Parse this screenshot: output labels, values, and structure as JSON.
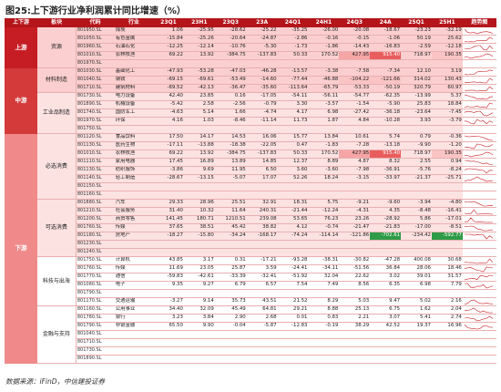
{
  "title": "图25:上下游行业净利润累计同比增速（%）",
  "source": "数据来源：iFinD，中信建投证券",
  "headers": [
    "上下游",
    "板块",
    "代码",
    "行业",
    "23Q1",
    "23H1",
    "23Q3",
    "23A",
    "24Q1",
    "24H1",
    "24Q3",
    "24A",
    "25Q1",
    "25H1",
    "趋势图"
  ],
  "groups": [
    {
      "label": "上游",
      "rows": 5,
      "bg": "#c61d24"
    },
    {
      "label": "中游",
      "rows": 8,
      "bg": "#d43a3a"
    },
    {
      "label": "下游",
      "rows": 29,
      "bg": "#f08a8a"
    }
  ],
  "sectors": [
    {
      "label": "资源",
      "rows": 5
    },
    {
      "label": "材料制造",
      "rows": 3
    },
    {
      "label": "工业品制造",
      "rows": 5
    },
    {
      "label": "必选消费",
      "rows": 8
    },
    {
      "label": "可选消费",
      "rows": 7
    },
    {
      "label": "科技与出海",
      "rows": 6
    },
    {
      "label": "金融与支持",
      "rows": 8
    }
  ],
  "rows": [
    {
      "code": "801950.SL",
      "name": "煤炭",
      "v": [
        "1.06",
        "-25.95",
        "-28.62",
        "-25.22",
        "-35.25",
        "-26.00",
        "-20.08",
        "-18.67",
        "-23.23",
        "-32.19"
      ]
    },
    {
      "code": "801050.SL",
      "name": "有色金属",
      "v": [
        "-15.84",
        "-25.26",
        "-20.64",
        "-24.87",
        "-2.86",
        "-0.16",
        "-0.15",
        "-1.06",
        "50.19",
        "25.62"
      ]
    },
    {
      "code": "801960.SL",
      "name": "石油石化",
      "v": [
        "-12.25",
        "-12.14",
        "-10.76",
        "-5.30",
        "-1.73",
        "-1.86",
        "-14.43",
        "-16.83",
        "-2.59",
        "-12.18"
      ]
    },
    {
      "code": "801010.SL",
      "name": "农林牧渔",
      "v": [
        "69.22",
        "13.92",
        "-384.75",
        "-137.83",
        "50.33",
        "170.52",
        "427.95",
        "915.40",
        "718.97",
        "190.35"
      ]
    },
    {
      "code": "801970.SL",
      "name": "",
      "v": [
        "",
        "",
        "",
        "",
        "",
        "",
        "",
        "",
        "",
        ""
      ]
    },
    {
      "code": "801030.SL",
      "name": "基础化工",
      "v": [
        "-47.93",
        "-53.28",
        "-47.03",
        "-46.28",
        "-13.57",
        "-3.38",
        "-7.58",
        "-7.34",
        "12.10",
        "3.19"
      ]
    },
    {
      "code": "801040.SL",
      "name": "钢铁",
      "v": [
        "-69.15",
        "-69.61",
        "-53.49",
        "-14.60",
        "-77.44",
        "-46.88",
        "-104.22",
        "-121.66",
        "314.02",
        "130.43"
      ]
    },
    {
      "code": "801710.SL",
      "name": "建筑材料",
      "v": [
        "-69.52",
        "-42.13",
        "-36.47",
        "-35.60",
        "-113.64",
        "-65.79",
        "-53.33",
        "-50.19",
        "320.79",
        "60.97"
      ]
    },
    {
      "code": "801730.SL",
      "name": "电力设备",
      "v": [
        "42.40",
        "23.85",
        "0.16",
        "-17.05",
        "-54.11",
        "-56.11",
        "-54.77",
        "-62.35",
        "-13.99",
        "5.37"
      ]
    },
    {
      "code": "801890.SL",
      "name": "机械设备",
      "v": [
        "-5.42",
        "2.58",
        "-2.56",
        "-0.79",
        "3.30",
        "-3.57",
        "-1.54",
        "-5.90",
        "25.83",
        "18.84"
      ]
    },
    {
      "code": "801740.SL",
      "name": "国防军工",
      "v": [
        "-4.63",
        "5.14",
        "1.66",
        "-4.74",
        "4.17",
        "6.98",
        "-27.42",
        "-36.18",
        "-23.64",
        "-7.45"
      ]
    },
    {
      "code": "801970.SL",
      "name": "环保",
      "v": [
        "4.16",
        "1.03",
        "-8.46",
        "-11.14",
        "11.73",
        "1.87",
        "4.84",
        "-10.28",
        "3.93",
        "-3.79"
      ]
    },
    {
      "code": "801750.SL",
      "name": "",
      "v": [
        "",
        "",
        "",
        "",
        "",
        "",
        "",
        "",
        "",
        ""
      ]
    },
    {
      "code": "801120.SL",
      "name": "食品饮料",
      "v": [
        "17.50",
        "14.17",
        "14.53",
        "16.06",
        "15.77",
        "13.84",
        "10.61",
        "5.74",
        "0.79",
        "-0.36"
      ]
    },
    {
      "code": "801130.SL",
      "name": "医药生物",
      "v": [
        "-17.11",
        "-13.88",
        "-18.38",
        "-22.05",
        "0.47",
        "-1.83",
        "-7.28",
        "-13.18",
        "-9.90",
        "-1.20"
      ]
    },
    {
      "code": "801010.SL",
      "name": "农林牧渔",
      "v": [
        "69.22",
        "13.92",
        "-384.75",
        "-137.83",
        "50.33",
        "170.52",
        "427.95",
        "915.40",
        "718.97",
        "190.35"
      ]
    },
    {
      "code": "801110.SL",
      "name": "家用电器",
      "v": [
        "17.45",
        "16.89",
        "13.89",
        "14.85",
        "12.37",
        "8.89",
        "4.87",
        "8.32",
        "2.55",
        "0.94"
      ]
    },
    {
      "code": "801130.SL",
      "name": "纺织服饰",
      "v": [
        "-3.86",
        "9.69",
        "11.95",
        "6.50",
        "3.60",
        "-3.60",
        "-7.98",
        "-36.91",
        "-5.76",
        "-8.24"
      ]
    },
    {
      "code": "801140.SL",
      "name": "轻工制造",
      "v": [
        "-28.67",
        "-13.15",
        "-5.07",
        "17.07",
        "52.26",
        "18.24",
        "-3.15",
        "-33.97",
        "-21.37",
        "-25.71"
      ]
    },
    {
      "code": "801150.SL",
      "name": "",
      "v": [
        "",
        "",
        "",
        "",
        "",
        "",
        "",
        "",
        "",
        ""
      ]
    },
    {
      "code": "801160.SL",
      "name": "",
      "v": [
        "",
        "",
        "",
        "",
        "",
        "",
        "",
        "",
        "",
        ""
      ]
    },
    {
      "code": "801880.SL",
      "name": "汽车",
      "v": [
        "29.33",
        "28.96",
        "25.51",
        "32.91",
        "18.31",
        "5.75",
        "-9.21",
        "-9.60",
        "-3.94",
        "-4.80"
      ]
    },
    {
      "code": "801210.SL",
      "name": "社会服务",
      "v": [
        "31.40",
        "10.32",
        "11.64",
        "240.31",
        "-21.44",
        "-12.24",
        "-4.31",
        "4.35",
        "-8.48",
        "-16.41"
      ]
    },
    {
      "code": "801200.SL",
      "name": "商贸零售",
      "v": [
        "141.45",
        "180.71",
        "1210.51",
        "239.08",
        "53.65",
        "76.23",
        "23.26",
        "-28.92",
        "5.86",
        "-17.01"
      ]
    },
    {
      "code": "801760.SL",
      "name": "传媒",
      "v": [
        "37.65",
        "38.51",
        "45.42",
        "38.82",
        "4.12",
        "-0.74",
        "-21.47",
        "-21.83",
        "-17.00",
        "-8.51"
      ]
    },
    {
      "code": "801180.SL",
      "name": "房地产",
      "v": [
        "-18.27",
        "-15.80",
        "-34.24",
        "-168.17",
        "-74.24",
        "-114.14",
        "-121.86",
        "-702.61",
        "-234.42",
        "-592.77"
      ]
    },
    {
      "code": "801230.SL",
      "name": "",
      "v": [
        "",
        "",
        "",
        "",
        "",
        "",
        "",
        "",
        "",
        ""
      ]
    },
    {
      "code": "801240.SL",
      "name": "",
      "v": [
        "",
        "",
        "",
        "",
        "",
        "",
        "",
        "",
        "",
        ""
      ]
    },
    {
      "code": "801750.SL",
      "name": "计算机",
      "v": [
        "43.85",
        "3.17",
        "0.31",
        "-17.21",
        "-93.28",
        "-38.31",
        "-30.82",
        "-47.28",
        "400.08",
        "30.68"
      ]
    },
    {
      "code": "801760.SL",
      "name": "传媒",
      "v": [
        "11.69",
        "23.05",
        "25.87",
        "3.59",
        "-24.41",
        "-34.11",
        "-51.56",
        "36.84",
        "28.06",
        "18.46"
      ]
    },
    {
      "code": "801770.SL",
      "name": "通信",
      "v": [
        "-59.83",
        "-42.61",
        "-33.39",
        "-32.41",
        "-51.92",
        "32.04",
        "22.62",
        "3.02",
        "39.01",
        "31.57"
      ]
    },
    {
      "code": "801080.SL",
      "name": "电子",
      "v": [
        "9.35",
        "9.27",
        "6.79",
        "6.57",
        "7.54",
        "7.49",
        "8.56",
        "6.35",
        "6.98",
        "7.79"
      ]
    },
    {
      "code": "801790.SL",
      "name": "",
      "v": [
        "",
        "",
        "",
        "",
        "",
        "",
        "",
        "",
        "",
        ""
      ]
    },
    {
      "code": "801170.SL",
      "name": "交通运输",
      "v": [
        "-3.27",
        "9.14",
        "35.73",
        "43.51",
        "21.52",
        "8.29",
        "5.03",
        "9.47",
        "5.02",
        "2.16"
      ]
    },
    {
      "code": "801160.SL",
      "name": "公用事业",
      "v": [
        "34.40",
        "32.09",
        "45.49",
        "64.81",
        "29.21",
        "8.88",
        "25.13",
        "6.75",
        "1.62",
        "2.04"
      ]
    },
    {
      "code": "801780.SL",
      "name": "银行",
      "v": [
        "3.23",
        "3.84",
        "2.90",
        "2.68",
        "0.01",
        "0.83",
        "2.21",
        "3.07",
        "5.41",
        "2.74"
      ]
    },
    {
      "code": "801790.SL",
      "name": "非银金融",
      "v": [
        "65.50",
        "9.90",
        "-0.04",
        "-5.87",
        "-12.83",
        "-0.19",
        "38.29",
        "42.52",
        "19.37",
        "16.96"
      ]
    },
    {
      "code": "801040.SL",
      "name": "",
      "v": [
        "",
        "",
        "",
        "",
        "",
        "",
        "",
        "",
        "",
        ""
      ]
    },
    {
      "code": "801710.SL",
      "name": "",
      "v": [
        "",
        "",
        "",
        "",
        "",
        "",
        "",
        "",
        "",
        ""
      ]
    },
    {
      "code": "801730.SL",
      "name": "",
      "v": [
        "",
        "",
        "",
        "",
        "",
        "",
        "",
        "",
        "",
        ""
      ]
    },
    {
      "code": "801890.SL",
      "name": "",
      "v": [
        "",
        "",
        "",
        "",
        "",
        "",
        "",
        "",
        "",
        ""
      ]
    }
  ],
  "highlights": {
    "3": {
      "6": "hl-red",
      "7": "hl-redd",
      "9": "hl-pink"
    },
    "15": {
      "6": "hl-red",
      "7": "hl-redd",
      "9": "hl-pink"
    },
    "25": {
      "7": "hl-green",
      "9": "hl-green"
    },
    "6": {
      "6": "hl-pink",
      "7": "hl-pink"
    }
  }
}
